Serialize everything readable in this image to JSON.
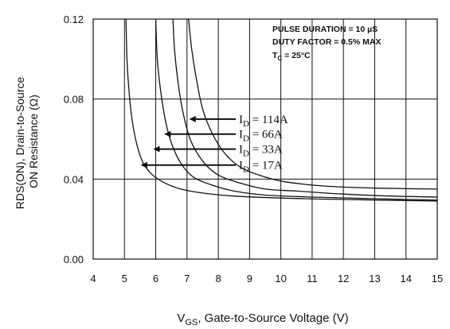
{
  "chart_data": {
    "type": "line",
    "title": "",
    "ylabel_line1": "RDS(ON), Drain-to-Source",
    "ylabel_line2": "ON Resistance (Ω)",
    "xlabel_main": "V",
    "xlabel_sub": "GS",
    "xlabel_rest": ", Gate-to-Source Voltage (V)",
    "xlim": [
      4,
      15
    ],
    "ylim": [
      0,
      0.12
    ],
    "x_ticks": [
      4,
      5,
      6,
      7,
      8,
      9,
      10,
      11,
      12,
      13,
      14,
      15
    ],
    "x_tick_labels": [
      "4",
      "5",
      "6",
      "7",
      "8",
      "9",
      "10",
      "11",
      "12",
      "13",
      "14",
      "15"
    ],
    "y_ticks": [
      0,
      0.04,
      0.08,
      0.12
    ],
    "y_tick_labels": [
      "0.00",
      "0.04",
      "0.08",
      "0.12"
    ],
    "grid": true,
    "conditions": {
      "pulse": "PULSE DURATION = 10 µS",
      "duty": "DUTY FACTOR = 0.5% MAX",
      "temp_main": "T",
      "temp_sub": "C",
      "temp_rest": " = 25°C"
    },
    "series": [
      {
        "name": "ID = 114A",
        "label_prefix": "I",
        "label_sub": "D",
        "label_value": " = 114A",
        "x": [
          7.05,
          7.15,
          7.3,
          7.5,
          7.8,
          8.2,
          8.7,
          9.3,
          10,
          11,
          12,
          13,
          14,
          15
        ],
        "y": [
          0.12,
          0.105,
          0.09,
          0.075,
          0.063,
          0.053,
          0.046,
          0.042,
          0.039,
          0.037,
          0.036,
          0.0355,
          0.0352,
          0.035
        ]
      },
      {
        "name": "ID = 66A",
        "label_prefix": "I",
        "label_sub": "D",
        "label_value": " = 66A",
        "x": [
          6.55,
          6.6,
          6.7,
          6.85,
          7.1,
          7.5,
          8,
          8.7,
          9.5,
          10.5,
          12,
          13.5,
          15
        ],
        "y": [
          0.12,
          0.105,
          0.09,
          0.075,
          0.06,
          0.049,
          0.042,
          0.038,
          0.035,
          0.034,
          0.0325,
          0.0315,
          0.031
        ]
      },
      {
        "name": "ID = 33A",
        "label_prefix": "I",
        "label_sub": "D",
        "label_value": " = 33A",
        "x": [
          6.0,
          6.05,
          6.15,
          6.3,
          6.5,
          6.8,
          7.2,
          7.8,
          8.5,
          9.5,
          11,
          13,
          15
        ],
        "y": [
          0.12,
          0.1,
          0.085,
          0.07,
          0.058,
          0.048,
          0.041,
          0.037,
          0.034,
          0.032,
          0.031,
          0.0302,
          0.0295
        ]
      },
      {
        "name": "ID = 17A",
        "label_prefix": "I",
        "label_sub": "D",
        "label_value": " = 17A",
        "x": [
          5.05,
          5.08,
          5.15,
          5.25,
          5.4,
          5.6,
          5.9,
          6.3,
          6.8,
          7.5,
          8.5,
          10,
          12,
          15
        ],
        "y": [
          0.12,
          0.1,
          0.083,
          0.069,
          0.057,
          0.048,
          0.042,
          0.038,
          0.035,
          0.033,
          0.0315,
          0.0305,
          0.0298,
          0.029
        ]
      }
    ],
    "annotations": [
      {
        "series": "ID = 114A",
        "arrow_to_x": 7.05,
        "arrow_to_y": 0.07
      },
      {
        "series": "ID = 66A",
        "arrow_to_x": 6.25,
        "arrow_to_y": 0.0625
      },
      {
        "series": "ID = 33A",
        "arrow_to_x": 5.9,
        "arrow_to_y": 0.055
      },
      {
        "series": "ID = 17A",
        "arrow_to_x": 5.5,
        "arrow_to_y": 0.047
      }
    ]
  }
}
